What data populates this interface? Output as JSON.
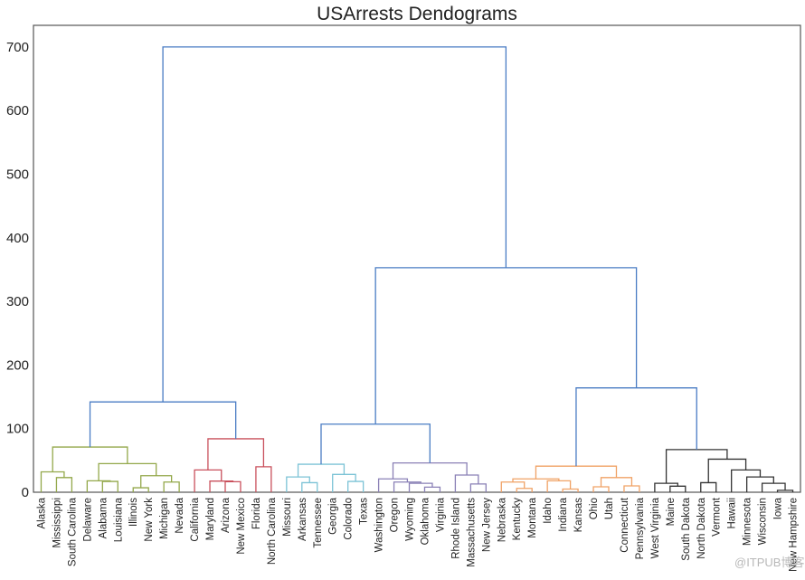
{
  "chart_data": {
    "type": "dendrogram",
    "title": "USArrests Dendograms",
    "xlabel": "",
    "ylabel": "",
    "ylim": [
      0,
      734
    ],
    "yticks": [
      0,
      100,
      200,
      300,
      400,
      500,
      600,
      700
    ],
    "above_threshold_color": "#4a7cc4",
    "tree": {
      "h": 700,
      "ch": [
        {
          "h": 142,
          "ch": [
            {
              "h": 71,
              "color": "#93a84a",
              "ch": [
                {
                  "h": 32,
                  "ch": [
                    "Alaska",
                    {
                      "h": 23,
                      "ch": [
                        "Mississippi",
                        "South Carolina"
                      ]
                    }
                  ]
                },
                {
                  "h": 45,
                  "ch": [
                    {
                      "h": 18,
                      "ch": [
                        "Delaware",
                        {
                          "h": 17,
                          "ch": [
                            "Alabama",
                            "Louisiana"
                          ]
                        }
                      ]
                    },
                    {
                      "h": 26,
                      "ch": [
                        {
                          "h": 7,
                          "ch": [
                            "Illinois",
                            "New York"
                          ]
                        },
                        {
                          "h": 16,
                          "ch": [
                            "Michigan",
                            "Nevada"
                          ]
                        }
                      ]
                    }
                  ]
                }
              ]
            },
            {
              "h": 84,
              "color": "#c9505c",
              "ch": [
                {
                  "h": 35,
                  "ch": [
                    "California",
                    {
                      "h": 17.5,
                      "ch": [
                        "Maryland",
                        {
                          "h": 16.5,
                          "ch": [
                            "Arizona",
                            "New Mexico"
                          ]
                        }
                      ]
                    }
                  ]
                },
                {
                  "h": 40,
                  "ch": [
                    "Florida",
                    "North Carolina"
                  ]
                }
              ]
            }
          ]
        },
        {
          "h": 353,
          "ch": [
            {
              "h": 107,
              "ch": [
                {
                  "h": 44,
                  "color": "#7cc3d6",
                  "ch": [
                    {
                      "h": 24,
                      "ch": [
                        "Missouri",
                        {
                          "h": 15,
                          "ch": [
                            "Arkansas",
                            "Tennessee"
                          ]
                        }
                      ]
                    },
                    {
                      "h": 28,
                      "ch": [
                        "Georgia",
                        {
                          "h": 17,
                          "ch": [
                            "Colorado",
                            "Texas"
                          ]
                        }
                      ]
                    }
                  ]
                },
                {
                  "h": 46,
                  "color": "#8a80b6",
                  "ch": [
                    {
                      "h": 21,
                      "ch": [
                        "Washington",
                        {
                          "h": 16,
                          "ch": [
                            "Oregon",
                            {
                              "h": 14,
                              "ch": [
                                "Wyoming",
                                {
                                  "h": 8,
                                  "ch": [
                                    "Oklahoma",
                                    "Virginia"
                                  ]
                                }
                              ]
                            }
                          ]
                        }
                      ]
                    },
                    {
                      "h": 27,
                      "ch": [
                        "Rhode Island",
                        {
                          "h": 13,
                          "ch": [
                            "Massachusetts",
                            "New Jersey"
                          ]
                        }
                      ]
                    }
                  ]
                }
              ]
            },
            {
              "h": 164,
              "ch": [
                {
                  "h": 41,
                  "color": "#f0a266",
                  "ch": [
                    {
                      "h": 21,
                      "ch": [
                        {
                          "h": 16,
                          "ch": [
                            "Nebraska",
                            {
                              "h": 6,
                              "ch": [
                                "Kentucky",
                                "Montana"
                              ]
                            }
                          ]
                        },
                        {
                          "h": 18,
                          "ch": [
                            "Idaho",
                            {
                              "h": 5,
                              "ch": [
                                "Indiana",
                                "Kansas"
                              ]
                            }
                          ]
                        }
                      ]
                    },
                    {
                      "h": 23,
                      "ch": [
                        {
                          "h": 8.5,
                          "ch": [
                            "Ohio",
                            "Utah"
                          ]
                        },
                        {
                          "h": 10,
                          "ch": [
                            "Connecticut",
                            "Pennsylvania"
                          ]
                        }
                      ]
                    }
                  ]
                },
                {
                  "h": 67,
                  "color": "#333333",
                  "ch": [
                    {
                      "h": 14,
                      "ch": [
                        "West Virginia",
                        {
                          "h": 9.5,
                          "ch": [
                            "Maine",
                            "South Dakota"
                          ]
                        }
                      ]
                    },
                    {
                      "h": 52,
                      "ch": [
                        {
                          "h": 15,
                          "ch": [
                            "North Dakota",
                            "Vermont"
                          ]
                        },
                        {
                          "h": 35,
                          "ch": [
                            "Hawaii",
                            {
                              "h": 24,
                              "ch": [
                                "Minnesota",
                                {
                                  "h": 14,
                                  "ch": [
                                    "Wisconsin",
                                    {
                                      "h": 3,
                                      "ch": [
                                        "Iowa",
                                        "New Hampshire"
                                      ]
                                    }
                                  ]
                                }
                              ]
                            }
                          ]
                        }
                      ]
                    }
                  ]
                }
              ]
            }
          ]
        }
      ]
    }
  },
  "watermark": "@ITPUB博客"
}
